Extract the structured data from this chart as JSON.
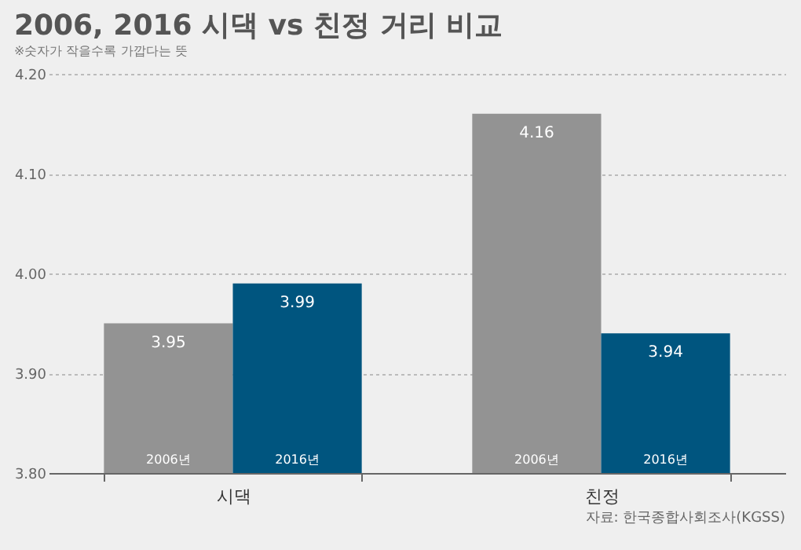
{
  "chart_data": {
    "type": "bar",
    "title": "2006, 2016 시댁 vs 친정 거리 비교",
    "subtitle": "※숫자가 작을수록 가깝다는 뜻",
    "categories": [
      "시댁",
      "친정"
    ],
    "series": [
      {
        "name": "2006년",
        "color": "#939393",
        "values": [
          3.95,
          4.16
        ]
      },
      {
        "name": "2016년",
        "color": "#00557f",
        "values": [
          3.99,
          3.94
        ]
      }
    ],
    "ylim": [
      3.8,
      4.2
    ],
    "yticks": [
      {
        "value": 3.8,
        "label": "3.80"
      },
      {
        "value": 3.9,
        "label": "3.90"
      },
      {
        "value": 4.0,
        "label": "4.00"
      },
      {
        "value": 4.1,
        "label": "4.10"
      },
      {
        "value": 4.2,
        "label": "4.20"
      }
    ],
    "grid": "y",
    "data_labels": true,
    "legend": false,
    "annotations": [
      "자료: 한국종합사회조사(KGSS)"
    ]
  }
}
